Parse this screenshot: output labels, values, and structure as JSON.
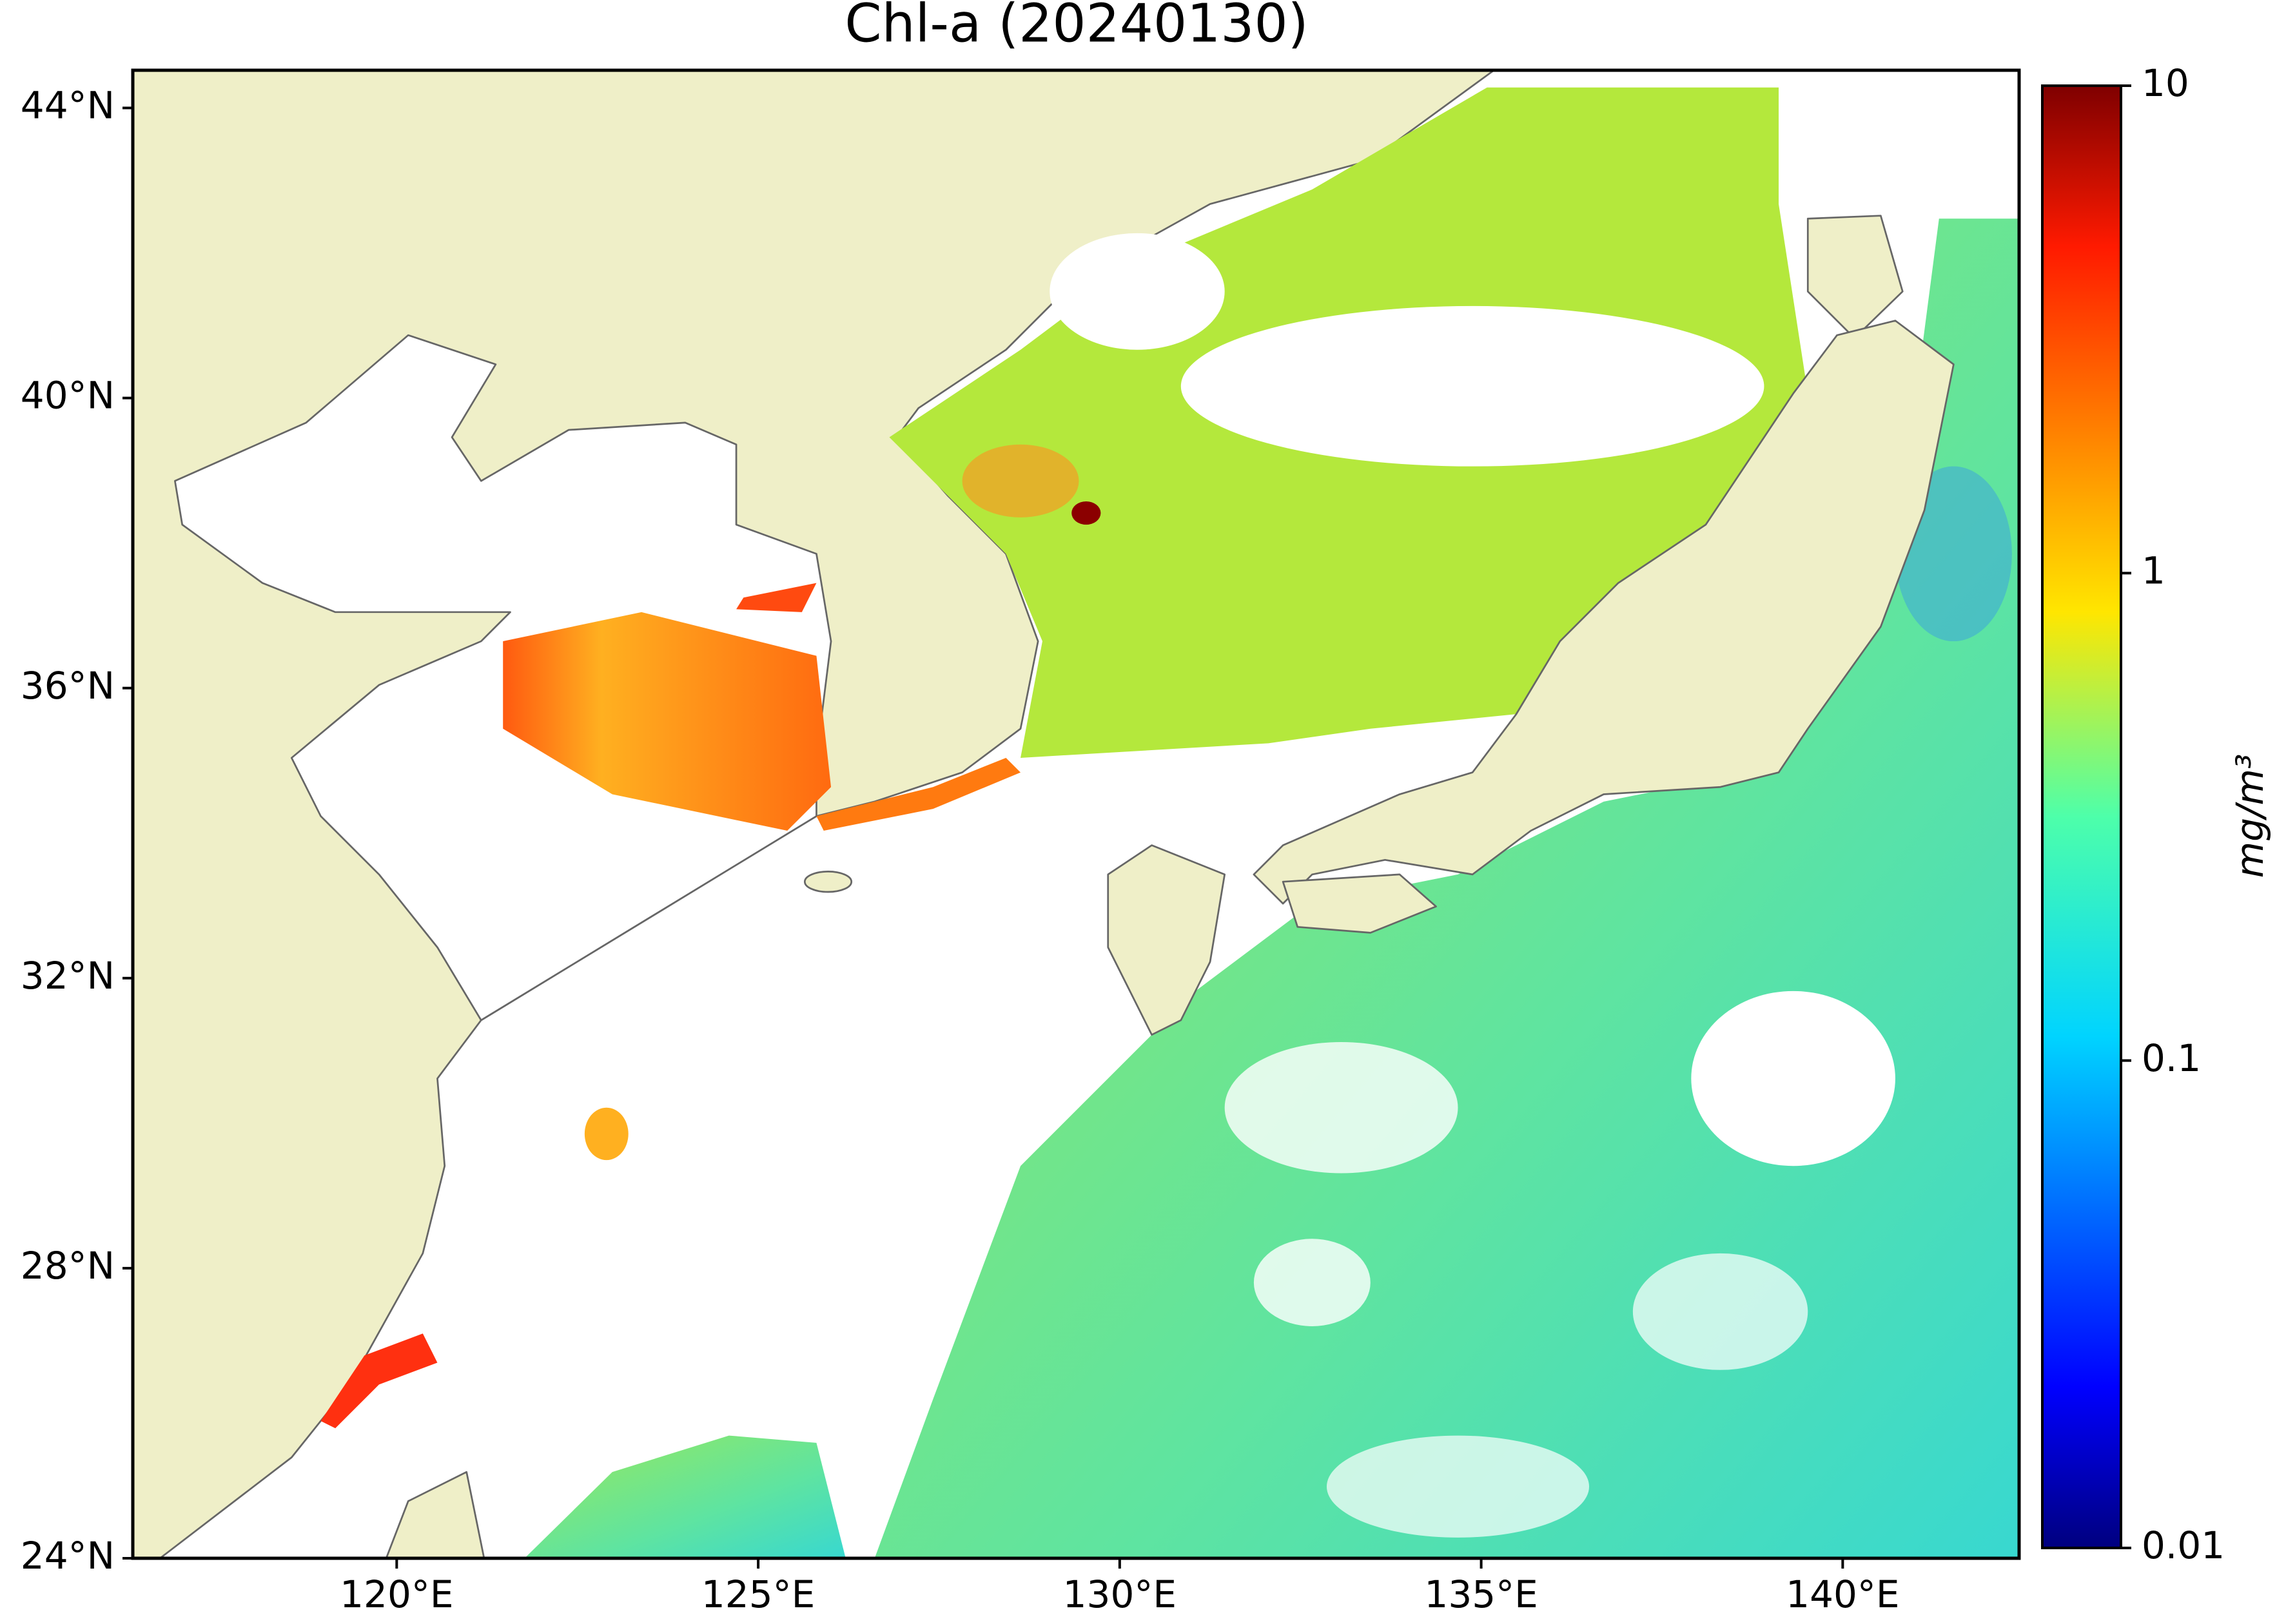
{
  "title": "Chl-a (20240130)",
  "map": {
    "xlim": [
      116.35,
      142.44
    ],
    "ylim": [
      24,
      44.52
    ],
    "xticks": [
      {
        "value": 120,
        "label": "120°E"
      },
      {
        "value": 125,
        "label": "125°E"
      },
      {
        "value": 130,
        "label": "130°E"
      },
      {
        "value": 135,
        "label": "135°E"
      },
      {
        "value": 140,
        "label": "140°E"
      }
    ],
    "yticks": [
      {
        "value": 24,
        "label": "24°N"
      },
      {
        "value": 28,
        "label": "28°N"
      },
      {
        "value": 32,
        "label": "32°N"
      },
      {
        "value": 36,
        "label": "36°N"
      },
      {
        "value": 40,
        "label": "40°N"
      },
      {
        "value": 44,
        "label": "44°N"
      }
    ]
  },
  "colorbar": {
    "label": "mg/m³",
    "scale": "log",
    "lim": [
      0.01,
      10
    ],
    "ticks": [
      0.01,
      0.1,
      1,
      10
    ]
  }
}
